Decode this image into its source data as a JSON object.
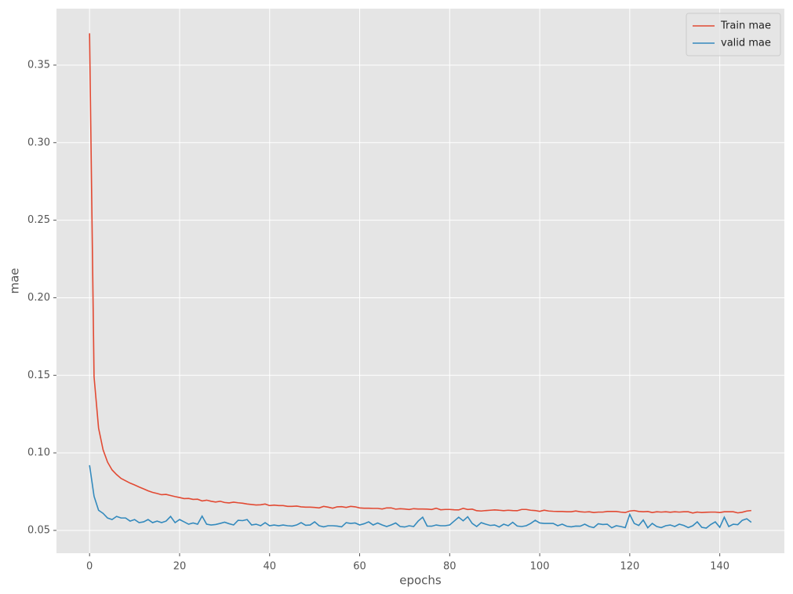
{
  "chart_data": {
    "type": "line",
    "xlabel": "epochs",
    "ylabel": "mae",
    "x": [
      0,
      1,
      2,
      3,
      4,
      5,
      6,
      7,
      8,
      9,
      10,
      11,
      12,
      13,
      14,
      15,
      16,
      17,
      18,
      19,
      20,
      21,
      22,
      23,
      24,
      25,
      26,
      27,
      28,
      29,
      30,
      31,
      32,
      33,
      34,
      35,
      36,
      37,
      38,
      39,
      40,
      41,
      42,
      43,
      44,
      45,
      46,
      47,
      48,
      49,
      50,
      51,
      52,
      53,
      54,
      55,
      56,
      57,
      58,
      59,
      60,
      61,
      62,
      63,
      64,
      65,
      66,
      67,
      68,
      69,
      70,
      71,
      72,
      73,
      74,
      75,
      76,
      77,
      78,
      79,
      80,
      81,
      82,
      83,
      84,
      85,
      86,
      87,
      88,
      89,
      90,
      91,
      92,
      93,
      94,
      95,
      96,
      97,
      98,
      99,
      100,
      101,
      102,
      103,
      104,
      105,
      106,
      107,
      108,
      109,
      110,
      111,
      112,
      113,
      114,
      115,
      116,
      117,
      118,
      119,
      120,
      121,
      122,
      123,
      124,
      125,
      126,
      127,
      128,
      129,
      130,
      131,
      132,
      133,
      134,
      135,
      136,
      137,
      138,
      139,
      140,
      141,
      142,
      143,
      144,
      145,
      146,
      147
    ],
    "series": [
      {
        "name": "Train mae",
        "color": "#e24a33",
        "values": [
          0.3705,
          0.149,
          0.116,
          0.102,
          0.094,
          0.089,
          0.086,
          0.0835,
          0.082,
          0.0805,
          0.0793,
          0.078,
          0.0768,
          0.0755,
          0.0745,
          0.0738,
          0.073,
          0.0732,
          0.0725,
          0.0718,
          0.0712,
          0.0705,
          0.0706,
          0.07,
          0.0701,
          0.069,
          0.0695,
          0.0688,
          0.0683,
          0.0688,
          0.068,
          0.0677,
          0.0682,
          0.0678,
          0.0675,
          0.067,
          0.0667,
          0.0664,
          0.0665,
          0.067,
          0.066,
          0.0663,
          0.066,
          0.066,
          0.0655,
          0.0655,
          0.0657,
          0.0652,
          0.065,
          0.065,
          0.0648,
          0.0645,
          0.0655,
          0.065,
          0.0643,
          0.0652,
          0.0653,
          0.0648,
          0.0655,
          0.0652,
          0.0645,
          0.0643,
          0.0643,
          0.0642,
          0.0642,
          0.0638,
          0.0645,
          0.0645,
          0.0637,
          0.064,
          0.0638,
          0.0635,
          0.064,
          0.0638,
          0.0638,
          0.0637,
          0.0635,
          0.0643,
          0.0633,
          0.0635,
          0.0635,
          0.0633,
          0.0632,
          0.0642,
          0.0635,
          0.0637,
          0.0627,
          0.0625,
          0.0628,
          0.063,
          0.0632,
          0.063,
          0.0627,
          0.063,
          0.0628,
          0.0627,
          0.0635,
          0.0635,
          0.063,
          0.0628,
          0.0623,
          0.063,
          0.0625,
          0.0623,
          0.0622,
          0.0622,
          0.062,
          0.062,
          0.0625,
          0.062,
          0.0618,
          0.062,
          0.0615,
          0.0618,
          0.0618,
          0.0622,
          0.0622,
          0.0622,
          0.0618,
          0.0615,
          0.0625,
          0.0628,
          0.0622,
          0.062,
          0.0622,
          0.0615,
          0.062,
          0.0618,
          0.062,
          0.0617,
          0.062,
          0.0618,
          0.062,
          0.062,
          0.0612,
          0.0618,
          0.0615,
          0.0617,
          0.0618,
          0.0618,
          0.0615,
          0.062,
          0.062,
          0.062,
          0.0613,
          0.0617,
          0.0625,
          0.0628
        ]
      },
      {
        "name": "valid mae",
        "color": "#348abd",
        "values": [
          0.092,
          0.072,
          0.063,
          0.061,
          0.058,
          0.057,
          0.059,
          0.058,
          0.058,
          0.056,
          0.057,
          0.055,
          0.0555,
          0.057,
          0.055,
          0.056,
          0.055,
          0.056,
          0.059,
          0.055,
          0.057,
          0.0555,
          0.054,
          0.0548,
          0.054,
          0.0592,
          0.054,
          0.0535,
          0.0538,
          0.0545,
          0.0553,
          0.0543,
          0.0535,
          0.0565,
          0.0563,
          0.057,
          0.0535,
          0.054,
          0.053,
          0.055,
          0.053,
          0.0535,
          0.053,
          0.0535,
          0.053,
          0.0528,
          0.0535,
          0.055,
          0.0533,
          0.0535,
          0.0555,
          0.053,
          0.0523,
          0.053,
          0.053,
          0.0528,
          0.0523,
          0.055,
          0.0545,
          0.0548,
          0.0535,
          0.0543,
          0.0555,
          0.0535,
          0.0548,
          0.0535,
          0.0525,
          0.0535,
          0.0548,
          0.0525,
          0.0522,
          0.053,
          0.0525,
          0.056,
          0.0585,
          0.0528,
          0.0527,
          0.0535,
          0.053,
          0.053,
          0.0535,
          0.056,
          0.0585,
          0.0562,
          0.0588,
          0.0545,
          0.0525,
          0.055,
          0.054,
          0.0532,
          0.0535,
          0.0522,
          0.054,
          0.053,
          0.0552,
          0.0528,
          0.0525,
          0.053,
          0.0545,
          0.0565,
          0.0548,
          0.0545,
          0.0545,
          0.0545,
          0.053,
          0.054,
          0.0527,
          0.0523,
          0.0528,
          0.0527,
          0.054,
          0.0525,
          0.0518,
          0.0543,
          0.0538,
          0.054,
          0.0517,
          0.053,
          0.0525,
          0.0518,
          0.0603,
          0.0545,
          0.0532,
          0.0567,
          0.0517,
          0.0545,
          0.0525,
          0.0518,
          0.053,
          0.0535,
          0.0525,
          0.054,
          0.0532,
          0.0518,
          0.053,
          0.0555,
          0.052,
          0.0515,
          0.0538,
          0.0555,
          0.052,
          0.0585,
          0.0525,
          0.054,
          0.0537,
          0.0565,
          0.0575,
          0.0552
        ]
      }
    ],
    "xlim": [
      -7.35,
      154.35
    ],
    "ylim": [
      0.0353,
      0.3864
    ],
    "xticks": [
      0,
      20,
      40,
      60,
      80,
      100,
      120,
      140
    ],
    "yticks": [
      0.05,
      {
        "value": 0.1,
        "label": "0.10"
      },
      0.15,
      {
        "value": 0.2,
        "label": "0.20"
      },
      0.25,
      {
        "value": 0.3,
        "label": "0.30"
      },
      0.35
    ],
    "grid": true,
    "legend": "upper right"
  }
}
